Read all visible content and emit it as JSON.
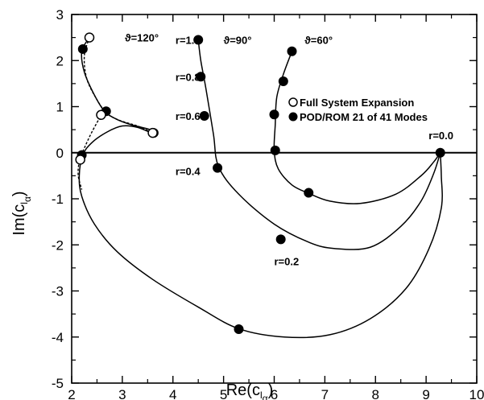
{
  "chart_data": {
    "type": "line",
    "xlabel": "Re(c",
    "xlabel_sub": "l",
    "xlabel_subsub": "α",
    "ylabel": "Im(c",
    "ylabel_sub": "l",
    "ylabel_subsub": "α",
    "xlim": [
      2,
      10
    ],
    "ylim": [
      -5,
      3
    ],
    "xticks": [
      2,
      3,
      4,
      5,
      6,
      7,
      8,
      9,
      10
    ],
    "yticks": [
      -5,
      -4,
      -3,
      -2,
      -1,
      0,
      1,
      2,
      3
    ],
    "legend": {
      "position": "upper-right",
      "entries": [
        {
          "marker": "open-circle",
          "label": "Full System Expansion"
        },
        {
          "marker": "filled-circle",
          "label": "POD/ROM 21 of 41 Modes"
        }
      ]
    },
    "annotations": [
      {
        "text": "ϑ=120°",
        "x": 3.05,
        "y": 2.5
      },
      {
        "text": "r=1.0",
        "x": 4.05,
        "y": 2.45
      },
      {
        "text": "ϑ=90°",
        "x": 5.0,
        "y": 2.45
      },
      {
        "text": "ϑ=60°",
        "x": 6.6,
        "y": 2.45
      },
      {
        "text": "r=0.8",
        "x": 4.05,
        "y": 1.65
      },
      {
        "text": "r=0.6",
        "x": 4.05,
        "y": 0.8
      },
      {
        "text": "r=0.4",
        "x": 4.05,
        "y": -0.4
      },
      {
        "text": "r=0.2",
        "x": 6.0,
        "y": -2.35
      },
      {
        "text": "r=0.0",
        "x": 9.05,
        "y": 0.38
      }
    ],
    "series": [
      {
        "name": "ϑ=90°",
        "x": [
          4.5,
          4.55,
          4.65,
          4.8,
          4.9,
          5.3,
          6.0,
          6.7,
          7.2,
          7.9,
          8.5,
          8.9,
          9.15,
          9.28
        ],
        "y": [
          2.45,
          2.0,
          1.4,
          0.4,
          -0.3,
          -0.9,
          -1.55,
          -1.95,
          -2.08,
          -2.05,
          -1.6,
          -1.05,
          -0.45,
          0.0
        ]
      },
      {
        "name": "ϑ=60°",
        "x": [
          6.35,
          6.18,
          6.05,
          6.02,
          6.0,
          6.08,
          6.35,
          6.68,
          7.1,
          7.7,
          8.4,
          8.9,
          9.15,
          9.28
        ],
        "y": [
          2.2,
          1.7,
          1.2,
          0.6,
          0.05,
          -0.35,
          -0.7,
          -0.88,
          -1.05,
          -1.1,
          -0.9,
          -0.5,
          -0.2,
          0.0
        ]
      },
      {
        "name": "ϑ=120°",
        "x": [
          2.35,
          2.2,
          2.25,
          2.45,
          2.65,
          2.9,
          3.2,
          3.55,
          3.6,
          3.3,
          3.0,
          2.7,
          2.4,
          2.22,
          2.15,
          2.2,
          2.45,
          2.9,
          3.6,
          4.5,
          5.3,
          6.2,
          7.1,
          7.9,
          8.6,
          9.05,
          9.3,
          9.3,
          9.28
        ],
        "y": [
          2.5,
          2.2,
          1.75,
          1.25,
          0.9,
          0.72,
          0.6,
          0.5,
          0.42,
          0.55,
          0.58,
          0.45,
          0.22,
          -0.05,
          -0.5,
          -0.95,
          -1.55,
          -2.15,
          -2.75,
          -3.35,
          -3.82,
          -4.0,
          -3.95,
          -3.6,
          -2.95,
          -2.1,
          -1.2,
          -0.5,
          0.0
        ]
      }
    ],
    "full_system_points": [
      {
        "x": 2.35,
        "y": 2.5
      },
      {
        "x": 2.58,
        "y": 0.82
      },
      {
        "x": 3.6,
        "y": 0.43
      },
      {
        "x": 2.17,
        "y": -0.15
      }
    ],
    "pod_rom_points": [
      {
        "x": 4.5,
        "y": 2.45
      },
      {
        "x": 4.55,
        "y": 1.65
      },
      {
        "x": 4.62,
        "y": 0.8
      },
      {
        "x": 4.88,
        "y": -0.33
      },
      {
        "x": 6.13,
        "y": -1.88
      },
      {
        "x": 9.28,
        "y": 0.0
      },
      {
        "x": 6.35,
        "y": 2.2
      },
      {
        "x": 6.18,
        "y": 1.55
      },
      {
        "x": 6.0,
        "y": 0.83
      },
      {
        "x": 6.02,
        "y": 0.05
      },
      {
        "x": 6.68,
        "y": -0.87
      },
      {
        "x": 5.3,
        "y": -3.83
      },
      {
        "x": 2.22,
        "y": 2.25
      },
      {
        "x": 2.68,
        "y": 0.9
      },
      {
        "x": 3.62,
        "y": 0.43
      },
      {
        "x": 2.2,
        "y": -0.05
      }
    ],
    "dashed_full_system": [
      {
        "x": [
          2.35,
          2.25,
          2.3,
          2.5,
          2.7,
          2.95,
          3.3,
          3.6
        ],
        "y": [
          2.5,
          2.1,
          1.6,
          1.15,
          0.85,
          0.7,
          0.58,
          0.43
        ]
      },
      {
        "x": [
          2.6,
          2.4,
          2.25,
          2.15,
          2.13,
          2.2
        ],
        "y": [
          0.85,
          0.45,
          0.1,
          -0.2,
          -0.5,
          -0.8
        ]
      }
    ]
  }
}
